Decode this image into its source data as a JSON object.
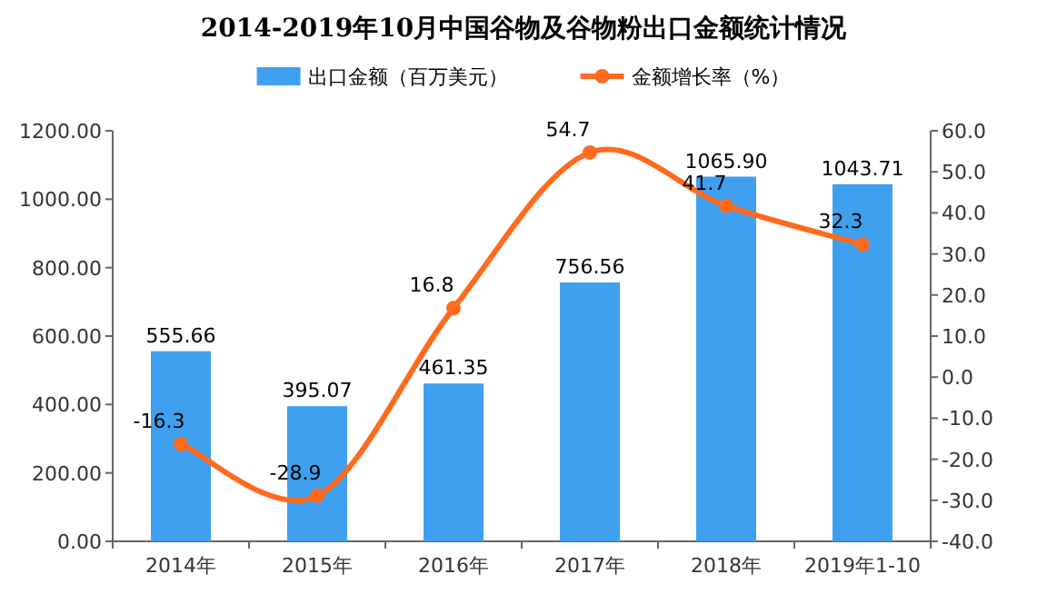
{
  "chart_data": {
    "type": "bar",
    "title": "2014-2019年10月中国谷物及谷物粉出口金额统计情况",
    "categories": [
      "2014年",
      "2015年",
      "2016年",
      "2017年",
      "2018年",
      "2019年1-10"
    ],
    "series": [
      {
        "name": "出口金额（百万美元）",
        "color": "#3fa0f0",
        "values": [
          555.66,
          395.07,
          461.35,
          756.56,
          1065.9,
          1043.71
        ],
        "value_labels": [
          "555.66",
          "395.07",
          "461.35",
          "756.56",
          "1065.90",
          "1043.71"
        ]
      },
      {
        "name": "金额增长率（%）",
        "type": "line",
        "axis": "y2",
        "color": "#ff6a1f",
        "marker": "circle",
        "values": [
          -16.3,
          -28.9,
          16.8,
          54.7,
          41.7,
          32.3
        ]
      }
    ],
    "data_labels": true,
    "ylim": [
      0,
      1200
    ],
    "yticks": [
      {
        "value": 0,
        "label": "0.00"
      },
      {
        "value": 200,
        "label": "200.00"
      },
      {
        "value": 400,
        "label": "400.00"
      },
      {
        "value": 600,
        "label": "600.00"
      },
      {
        "value": 800,
        "label": "800.00"
      },
      {
        "value": 1000,
        "label": "1000.00"
      },
      {
        "value": 1200,
        "label": "1200.00"
      }
    ],
    "y2lim": [
      -40,
      60
    ],
    "y2ticks": [
      {
        "value": -40,
        "label": "-40.0"
      },
      {
        "value": -30,
        "label": "-30.0"
      },
      {
        "value": -20,
        "label": "-20.0"
      },
      {
        "value": -10,
        "label": "-10.0"
      },
      {
        "value": 0,
        "label": "0.0"
      },
      {
        "value": 10,
        "label": "10.0"
      },
      {
        "value": 20,
        "label": "20.0"
      },
      {
        "value": 30,
        "label": "30.0"
      },
      {
        "value": 40,
        "label": "40.0"
      },
      {
        "value": 50,
        "label": "50.0"
      },
      {
        "value": 60,
        "label": "60.0"
      }
    ],
    "legend": "top"
  }
}
